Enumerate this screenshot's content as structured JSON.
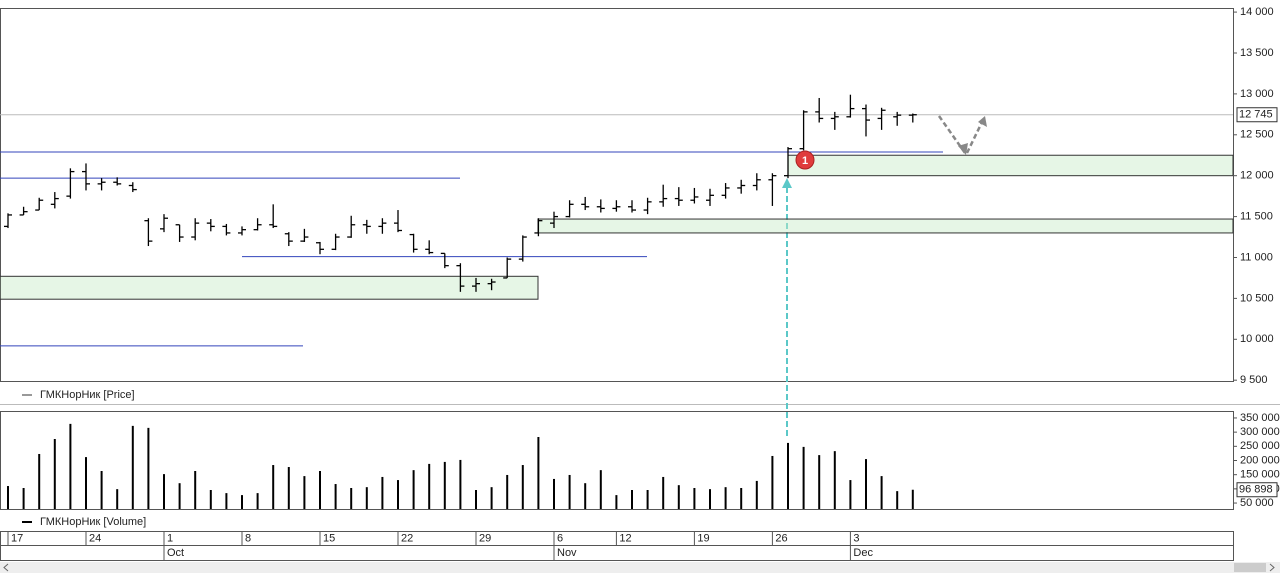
{
  "chart_data": [
    {
      "type": "ohlc",
      "ylim": [
        9490,
        14050
      ],
      "yticks": [
        {
          "value": 14000,
          "label": "14 000"
        },
        {
          "value": 13500,
          "label": "13 500"
        },
        {
          "value": 13000,
          "label": "13 000"
        },
        {
          "value": 12500,
          "label": "12 500"
        },
        {
          "value": 12000,
          "label": "12 000"
        },
        {
          "value": 11500,
          "label": "11 500"
        },
        {
          "value": 11000,
          "label": "11 000"
        },
        {
          "value": 10500,
          "label": "10 500"
        },
        {
          "value": 10000,
          "label": "10 000"
        },
        {
          "value": 9500,
          "label": "9 500"
        }
      ],
      "series": [
        {
          "name": "ГМКНорНик [Price]",
          "color": "#000000",
          "open": [
            11380,
            11520,
            11580,
            11650,
            11750,
            12050,
            11900,
            11920,
            11880,
            11450,
            11350,
            11400,
            11250,
            11420,
            11380,
            11300,
            11340,
            11400,
            11290,
            11200,
            11180,
            11100,
            11250,
            11400,
            11380,
            11420,
            11280,
            11100,
            11050,
            10900,
            10650,
            10680,
            10750,
            10980,
            11300,
            11420,
            11500,
            11650,
            11620,
            11600,
            11620,
            11580,
            11680,
            11720,
            11700,
            11700,
            11760,
            11850,
            11880,
            11950,
            12000,
            12330,
            12780,
            12700,
            12720,
            12820,
            12700,
            12720,
            12740
          ],
          "high": [
            11540,
            11620,
            11730,
            11800,
            12090,
            12150,
            11970,
            11980,
            11920,
            11480,
            11530,
            11400,
            11480,
            11470,
            11410,
            11380,
            11480,
            11650,
            11310,
            11350,
            11190,
            11290,
            11510,
            11460,
            11480,
            11580,
            11290,
            11210,
            11050,
            10930,
            10750,
            10740,
            11000,
            11270,
            11480,
            11560,
            11700,
            11740,
            11710,
            11700,
            11700,
            11730,
            11890,
            11860,
            11850,
            11840,
            11910,
            11950,
            12030,
            12030,
            12350,
            12800,
            12950,
            12780,
            12990,
            12870,
            12830,
            12780,
            12760
          ],
          "low": [
            11360,
            11520,
            11580,
            11600,
            11720,
            11820,
            11820,
            11880,
            11800,
            11140,
            11310,
            11190,
            11210,
            11320,
            11270,
            11270,
            11330,
            11360,
            11140,
            11190,
            11040,
            11090,
            11240,
            11290,
            11290,
            11310,
            11060,
            11040,
            10870,
            10580,
            10580,
            10600,
            10750,
            10950,
            11260,
            11360,
            11490,
            11580,
            11550,
            11560,
            11550,
            11530,
            11620,
            11630,
            11660,
            11630,
            11720,
            11780,
            11820,
            11630,
            11970,
            12310,
            12650,
            12560,
            12710,
            12480,
            12560,
            12610,
            12650
          ],
          "close": [
            11520,
            11560,
            11700,
            11720,
            12050,
            11900,
            11920,
            11900,
            11830,
            11200,
            11480,
            11250,
            11420,
            11380,
            11300,
            11340,
            11400,
            11380,
            11200,
            11250,
            11100,
            11250,
            11400,
            11380,
            11420,
            11330,
            11100,
            11060,
            10900,
            10650,
            10680,
            10700,
            10980,
            11250,
            11450,
            11500,
            11650,
            11620,
            11600,
            11620,
            11580,
            11680,
            11720,
            11700,
            11740,
            11760,
            11850,
            11880,
            11950,
            12000,
            12330,
            12780,
            12700,
            12720,
            12820,
            12680,
            12800,
            12740,
            12745
          ]
        }
      ],
      "levels": [
        12290,
        11970,
        11010,
        9920
      ],
      "zones": [
        {
          "low": 10490,
          "high": 10770
        },
        {
          "low": 11300,
          "high": 11470
        },
        {
          "low": 12000,
          "high": 12250
        }
      ],
      "last_value": {
        "value": 12745,
        "label": "12 745"
      },
      "annotations": [
        "1"
      ]
    },
    {
      "type": "bar",
      "ylim": [
        29000,
        371000
      ],
      "yticks": [
        {
          "value": 350000,
          "label": "350 000"
        },
        {
          "value": 300000,
          "label": "300 000"
        },
        {
          "value": 250000,
          "label": "250 000"
        },
        {
          "value": 200000,
          "label": "200 000"
        },
        {
          "value": 150000,
          "label": "150 000"
        },
        {
          "value": 100000,
          "label": "100 000"
        },
        {
          "value": 50000,
          "label": "50 000"
        }
      ],
      "categories": [
        "17",
        null,
        null,
        null,
        null,
        "24",
        null,
        null,
        null,
        null,
        "1",
        null,
        null,
        null,
        null,
        "8",
        null,
        null,
        null,
        null,
        "15",
        null,
        null,
        null,
        null,
        "22",
        null,
        null,
        null,
        null,
        "29",
        null,
        null,
        null,
        null,
        "6",
        null,
        null,
        null,
        "12",
        null,
        null,
        null,
        null,
        "19",
        null,
        null,
        null,
        null,
        "26",
        null,
        null,
        null,
        null,
        "3",
        null,
        null,
        null,
        null
      ],
      "months": [
        null,
        null,
        null,
        null,
        null,
        null,
        null,
        null,
        null,
        null,
        "Oct",
        null,
        null,
        null,
        null,
        null,
        null,
        null,
        null,
        null,
        null,
        null,
        null,
        null,
        null,
        null,
        null,
        null,
        null,
        null,
        null,
        null,
        null,
        null,
        null,
        "Nov",
        null,
        null,
        null,
        null,
        null,
        null,
        null,
        null,
        null,
        null,
        null,
        null,
        null,
        null,
        null,
        null,
        null,
        null,
        "Dec",
        null,
        null,
        null,
        null
      ],
      "series": [
        {
          "name": "ГМКНорНик [Volume]",
          "color": "#000000",
          "values": [
            110000,
            103000,
            223000,
            276000,
            329000,
            212000,
            163000,
            99000,
            322000,
            315000,
            152000,
            120000,
            163000,
            96000,
            85000,
            78000,
            85000,
            184000,
            177000,
            145000,
            163000,
            117000,
            103000,
            106000,
            142000,
            131000,
            166000,
            188000,
            195000,
            202000,
            96000,
            106000,
            149000,
            184000,
            283000,
            135000,
            149000,
            120000,
            166000,
            78000,
            96000,
            96000,
            142000,
            113000,
            103000,
            99000,
            106000,
            103000,
            128000,
            216000,
            262000,
            248000,
            219000,
            233000,
            131000,
            205000,
            145000,
            92000,
            96898
          ]
        }
      ],
      "last_value": {
        "value": 96898,
        "label": "96 898"
      }
    }
  ]
}
